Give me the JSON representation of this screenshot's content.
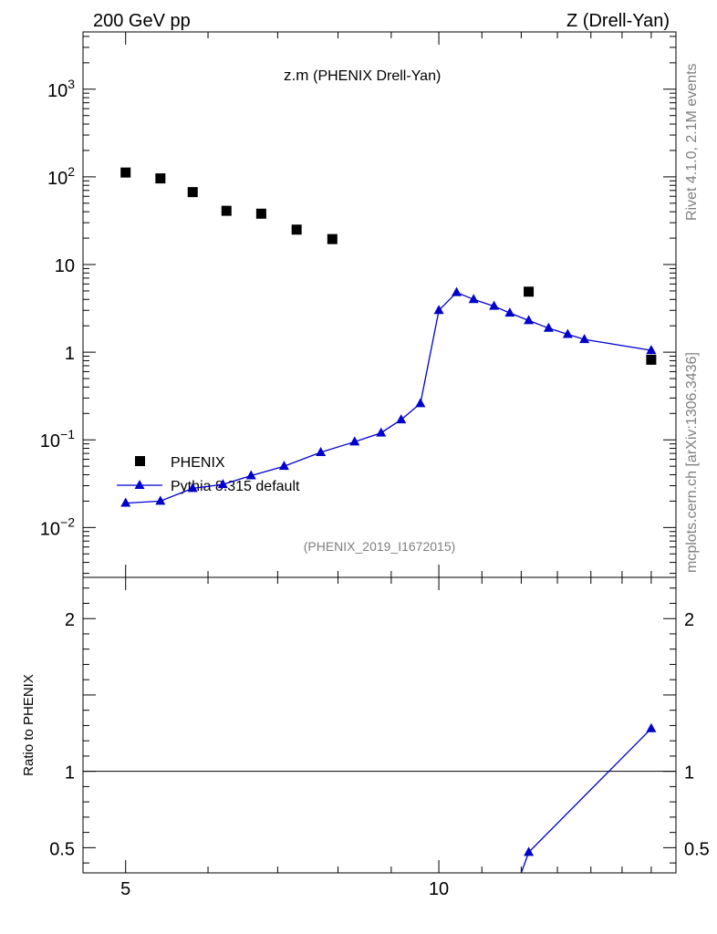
{
  "header": {
    "left": "200 GeV pp",
    "right": "Z (Drell-Yan)"
  },
  "side_texts": {
    "rivet": "Rivet 4.1.0,  2.1M events",
    "mcplots": "mcplots.cern.ch [arXiv:1306.3436]"
  },
  "colors": {
    "data": "#000000",
    "mc": "#0000cc",
    "side_text": "#7f7f7f"
  },
  "chart_data": [
    {
      "panel": "main",
      "type": "scatter",
      "title": "z.m",
      "subtitle": "(PHENIX Drell-Yan)",
      "analysis_id": "(PHENIX_2019_I1672015)",
      "xscale": "log",
      "yscale": "log",
      "xlim": [
        4.55,
        16.9
      ],
      "ylim": [
        0.0027,
        4500
      ],
      "y_ticks": [
        {
          "v": 0.01,
          "label": "10",
          "exp": "−2"
        },
        {
          "v": 0.1,
          "label": "10",
          "exp": "−1"
        },
        {
          "v": 1,
          "label": "1",
          "exp": ""
        },
        {
          "v": 10,
          "label": "10",
          "exp": ""
        },
        {
          "v": 100,
          "label": "10",
          "exp": "2"
        },
        {
          "v": 1000,
          "label": "10",
          "exp": "3"
        }
      ],
      "legend": {
        "position": "middle-left",
        "entries": [
          "PHENIX",
          "Pythia 8.315 default"
        ]
      },
      "series": [
        {
          "name": "PHENIX",
          "marker": "square",
          "x": [
            5.0,
            5.4,
            5.8,
            6.25,
            6.75,
            7.3,
            7.9,
            12.2,
            16.0
          ],
          "y": [
            112,
            96,
            67,
            41,
            38,
            25,
            19.5,
            4.9,
            0.82
          ]
        },
        {
          "name": "Pythia 8.315 default",
          "marker": "triangle",
          "line": true,
          "x": [
            5.0,
            5.4,
            5.8,
            6.2,
            6.6,
            7.1,
            7.7,
            8.3,
            8.8,
            9.2,
            9.6,
            10.0,
            10.4,
            10.8,
            11.3,
            11.7,
            12.2,
            12.75,
            13.3,
            13.8,
            16.0
          ],
          "y": [
            0.019,
            0.02,
            0.028,
            0.031,
            0.039,
            0.05,
            0.072,
            0.095,
            0.12,
            0.17,
            0.26,
            3.0,
            4.8,
            4.0,
            3.35,
            2.8,
            2.3,
            1.88,
            1.6,
            1.4,
            1.05
          ]
        }
      ]
    },
    {
      "panel": "ratio",
      "type": "line",
      "ylabel": "Ratio to PHENIX",
      "xscale": "log",
      "xlim": [
        4.55,
        16.9
      ],
      "ylim": [
        0.335,
        2.27
      ],
      "reference_line": 1,
      "x_ticks": [
        {
          "v": 5,
          "label": "5"
        },
        {
          "v": 10,
          "label": "10"
        }
      ],
      "y_ticks": [
        {
          "v": 0.5,
          "label": "0.5"
        },
        {
          "v": 1,
          "label": "1"
        },
        {
          "v": 2,
          "label": "2"
        }
      ],
      "series": [
        {
          "name": "Pythia 8.315 default",
          "marker": "triangle",
          "line": true,
          "x": [
            12.0,
            12.2,
            16.0
          ],
          "y": [
            0.335,
            0.47,
            1.28
          ]
        }
      ]
    }
  ]
}
